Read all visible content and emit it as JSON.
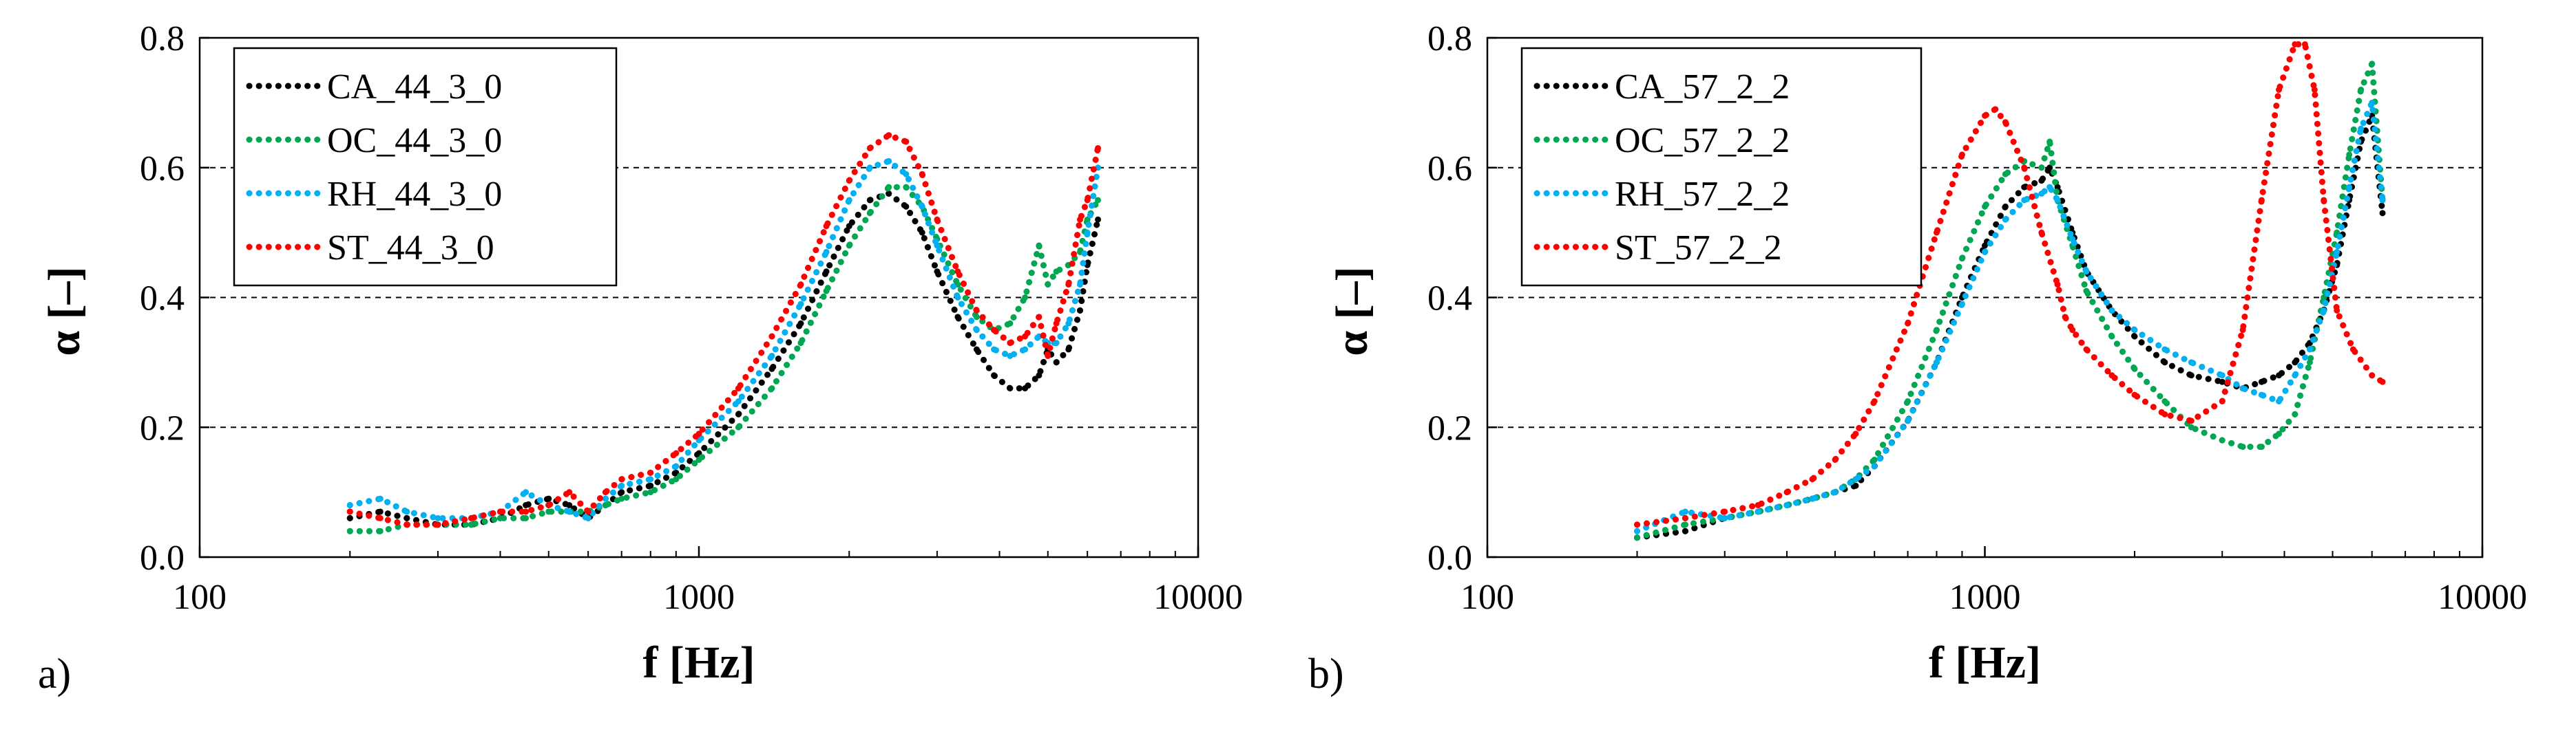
{
  "chart_data": [
    {
      "type": "line",
      "panel_label": "a)",
      "xlabel": "f [Hz]",
      "ylabel": "α [–]",
      "xscale": "log",
      "xlim": [
        100,
        10000
      ],
      "ylim": [
        0,
        0.8
      ],
      "xticks": [
        "100",
        "1000",
        "10000"
      ],
      "yticks": [
        "0.0",
        "0.2",
        "0.4",
        "0.6",
        "0.8"
      ],
      "grid": "horizontal dashed at 0.2, 0.4, 0.6",
      "legend_position": "top-left",
      "series": [
        {
          "name": "CA_44_3_0",
          "color": "#000000",
          "x": [
            200,
            230,
            260,
            300,
            350,
            400,
            450,
            500,
            550,
            600,
            650,
            700,
            800,
            900,
            1000,
            1200,
            1400,
            1600,
            1800,
            2000,
            2200,
            2400,
            2600,
            2800,
            3000,
            3300,
            3600,
            3900,
            4200,
            4500,
            4800,
            5000,
            5200,
            5500,
            5800,
            6000,
            6300
          ],
          "y": [
            0.06,
            0.07,
            0.06,
            0.05,
            0.05,
            0.06,
            0.08,
            0.09,
            0.08,
            0.06,
            0.08,
            0.1,
            0.11,
            0.13,
            0.16,
            0.22,
            0.29,
            0.36,
            0.44,
            0.51,
            0.55,
            0.56,
            0.54,
            0.5,
            0.44,
            0.37,
            0.32,
            0.28,
            0.26,
            0.26,
            0.28,
            0.32,
            0.3,
            0.32,
            0.38,
            0.45,
            0.52
          ]
        },
        {
          "name": "OC_44_3_0",
          "color": "#00a651",
          "x": [
            200,
            230,
            260,
            300,
            350,
            400,
            450,
            500,
            550,
            600,
            650,
            700,
            800,
            900,
            1000,
            1200,
            1400,
            1600,
            1800,
            2000,
            2200,
            2400,
            2600,
            2800,
            3000,
            3300,
            3600,
            3900,
            4200,
            4500,
            4800,
            5000,
            5200,
            5500,
            5800,
            6000,
            6300
          ],
          "y": [
            0.04,
            0.04,
            0.05,
            0.05,
            0.05,
            0.06,
            0.06,
            0.07,
            0.07,
            0.07,
            0.08,
            0.09,
            0.1,
            0.12,
            0.15,
            0.2,
            0.26,
            0.33,
            0.41,
            0.48,
            0.53,
            0.57,
            0.57,
            0.54,
            0.49,
            0.42,
            0.37,
            0.35,
            0.36,
            0.4,
            0.48,
            0.42,
            0.44,
            0.45,
            0.47,
            0.52,
            0.55
          ]
        },
        {
          "name": "RH_44_3_0",
          "color": "#00b0f0",
          "x": [
            200,
            230,
            260,
            300,
            350,
            400,
            450,
            500,
            550,
            600,
            650,
            700,
            800,
            900,
            1000,
            1200,
            1400,
            1600,
            1800,
            2000,
            2200,
            2400,
            2600,
            2800,
            3000,
            3300,
            3600,
            3900,
            4200,
            4500,
            4800,
            5000,
            5200,
            5500,
            5800,
            6000,
            6300
          ],
          "y": [
            0.08,
            0.09,
            0.07,
            0.06,
            0.06,
            0.07,
            0.1,
            0.08,
            0.07,
            0.06,
            0.09,
            0.11,
            0.12,
            0.14,
            0.18,
            0.24,
            0.31,
            0.39,
            0.47,
            0.55,
            0.6,
            0.61,
            0.59,
            0.54,
            0.48,
            0.4,
            0.35,
            0.32,
            0.31,
            0.32,
            0.34,
            0.33,
            0.33,
            0.36,
            0.42,
            0.5,
            0.6
          ]
        },
        {
          "name": "ST_44_3_0",
          "color": "#ff0000",
          "x": [
            200,
            230,
            260,
            300,
            350,
            400,
            450,
            500,
            550,
            600,
            650,
            700,
            800,
            900,
            1000,
            1200,
            1400,
            1600,
            1800,
            2000,
            2200,
            2400,
            2600,
            2800,
            3000,
            3300,
            3600,
            3900,
            4200,
            4500,
            4800,
            5000,
            5200,
            5500,
            5800,
            6000,
            6300
          ],
          "y": [
            0.07,
            0.06,
            0.05,
            0.05,
            0.06,
            0.07,
            0.07,
            0.08,
            0.1,
            0.07,
            0.1,
            0.12,
            0.13,
            0.16,
            0.19,
            0.26,
            0.34,
            0.42,
            0.51,
            0.58,
            0.63,
            0.65,
            0.64,
            0.59,
            0.52,
            0.44,
            0.38,
            0.35,
            0.33,
            0.34,
            0.37,
            0.31,
            0.36,
            0.42,
            0.52,
            0.55,
            0.63
          ]
        }
      ]
    },
    {
      "type": "line",
      "panel_label": "b)",
      "xlabel": "f [Hz]",
      "ylabel": "α [–]",
      "xscale": "log",
      "xlim": [
        100,
        10000
      ],
      "ylim": [
        0,
        0.8
      ],
      "xticks": [
        "100",
        "1000",
        "10000"
      ],
      "yticks": [
        "0.0",
        "0.2",
        "0.4",
        "0.6",
        "0.8"
      ],
      "grid": "horizontal dashed at 0.2, 0.4, 0.6",
      "legend_position": "top-left",
      "series": [
        {
          "name": "CA_57_2_2",
          "color": "#000000",
          "x": [
            200,
            250,
            300,
            350,
            400,
            450,
            500,
            550,
            600,
            700,
            800,
            900,
            1000,
            1100,
            1200,
            1300,
            1350,
            1400,
            1500,
            1600,
            1800,
            2000,
            2300,
            2600,
            3000,
            3300,
            3600,
            3900,
            4200,
            4500,
            4800,
            5100,
            5400,
            5700,
            6000,
            6300
          ],
          "y": [
            0.03,
            0.04,
            0.06,
            0.07,
            0.08,
            0.09,
            0.1,
            0.11,
            0.14,
            0.21,
            0.3,
            0.4,
            0.48,
            0.54,
            0.57,
            0.58,
            0.6,
            0.57,
            0.5,
            0.44,
            0.38,
            0.34,
            0.3,
            0.28,
            0.27,
            0.26,
            0.27,
            0.28,
            0.3,
            0.33,
            0.38,
            0.45,
            0.55,
            0.64,
            0.68,
            0.53
          ]
        },
        {
          "name": "OC_57_2_2",
          "color": "#00a651",
          "x": [
            200,
            250,
            300,
            350,
            400,
            450,
            500,
            550,
            600,
            700,
            800,
            900,
            1000,
            1100,
            1200,
            1300,
            1350,
            1400,
            1500,
            1600,
            1800,
            2000,
            2300,
            2600,
            3000,
            3300,
            3600,
            3900,
            4200,
            4500,
            4800,
            5100,
            5400,
            5700,
            6000,
            6300
          ],
          "y": [
            0.03,
            0.05,
            0.06,
            0.07,
            0.08,
            0.09,
            0.1,
            0.12,
            0.15,
            0.24,
            0.35,
            0.46,
            0.54,
            0.59,
            0.61,
            0.6,
            0.64,
            0.55,
            0.48,
            0.41,
            0.34,
            0.29,
            0.24,
            0.2,
            0.18,
            0.17,
            0.17,
            0.19,
            0.22,
            0.3,
            0.4,
            0.5,
            0.62,
            0.72,
            0.76,
            0.55
          ]
        },
        {
          "name": "RH_57_2_2",
          "color": "#00b0f0",
          "x": [
            200,
            250,
            300,
            350,
            400,
            450,
            500,
            550,
            600,
            700,
            800,
            900,
            1000,
            1100,
            1200,
            1300,
            1350,
            1400,
            1500,
            1600,
            1800,
            2000,
            2300,
            2600,
            3000,
            3300,
            3600,
            3900,
            4200,
            4500,
            4800,
            5100,
            5400,
            5700,
            6000,
            6300
          ],
          "y": [
            0.04,
            0.07,
            0.06,
            0.07,
            0.08,
            0.09,
            0.1,
            0.12,
            0.14,
            0.21,
            0.3,
            0.39,
            0.47,
            0.52,
            0.55,
            0.56,
            0.57,
            0.55,
            0.49,
            0.44,
            0.38,
            0.35,
            0.32,
            0.3,
            0.28,
            0.26,
            0.25,
            0.24,
            0.28,
            0.32,
            0.38,
            0.47,
            0.57,
            0.66,
            0.7,
            0.55
          ]
        },
        {
          "name": "ST_57_2_2",
          "color": "#ff0000",
          "x": [
            200,
            250,
            300,
            350,
            400,
            450,
            500,
            550,
            600,
            700,
            800,
            900,
            1000,
            1050,
            1100,
            1200,
            1300,
            1400,
            1450,
            1500,
            1600,
            1800,
            2000,
            2300,
            2600,
            3000,
            3300,
            3600,
            3900,
            4200,
            4400,
            4600,
            4800,
            5100,
            5500,
            6000,
            6300
          ],
          "y": [
            0.05,
            0.06,
            0.07,
            0.08,
            0.1,
            0.12,
            0.15,
            0.19,
            0.24,
            0.36,
            0.5,
            0.62,
            0.68,
            0.69,
            0.67,
            0.6,
            0.5,
            0.42,
            0.37,
            0.35,
            0.32,
            0.28,
            0.25,
            0.22,
            0.21,
            0.24,
            0.35,
            0.55,
            0.72,
            0.79,
            0.79,
            0.72,
            0.55,
            0.38,
            0.32,
            0.28,
            0.27
          ]
        }
      ]
    }
  ]
}
